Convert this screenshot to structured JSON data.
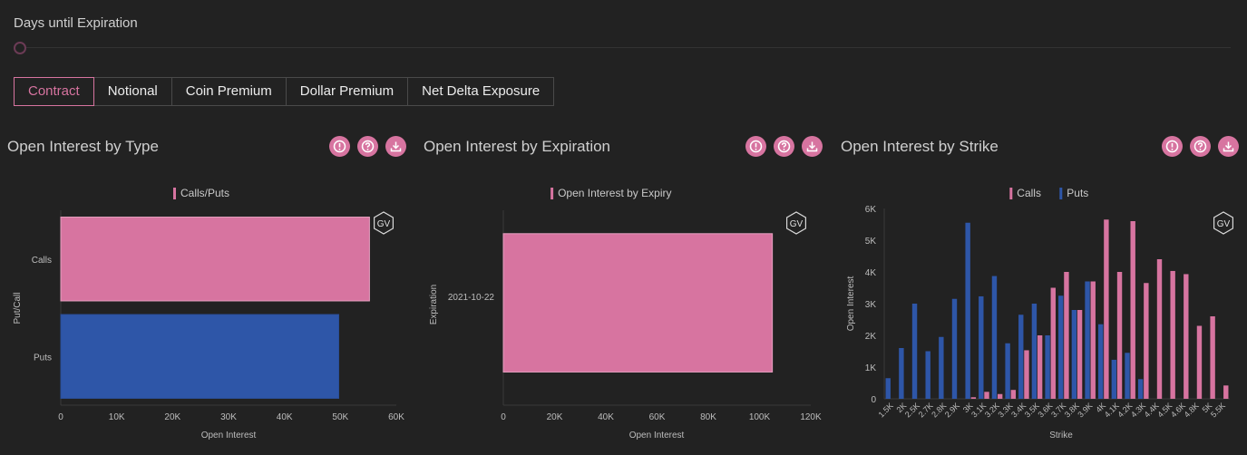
{
  "slider": {
    "label": "Days until Expiration"
  },
  "tabs": [
    "Contract",
    "Notional",
    "Coin Premium",
    "Dollar Premium",
    "Net Delta Exposure"
  ],
  "active_tab": "Contract",
  "colors": {
    "calls": "#d774a0",
    "puts": "#2e56a8",
    "accent": "#d774a0"
  },
  "panels": [
    {
      "title": "Open Interest by Type",
      "icons": [
        "info-icon",
        "help-icon",
        "download-icon"
      ]
    },
    {
      "title": "Open Interest by Expiration",
      "icons": [
        "info-icon",
        "help-icon",
        "download-icon"
      ]
    },
    {
      "title": "Open Interest by Strike",
      "icons": [
        "info-icon",
        "help-icon",
        "download-icon"
      ]
    }
  ],
  "chart_data": [
    {
      "type": "bar",
      "orientation": "horizontal",
      "legend": [
        "Calls/Puts"
      ],
      "categories": [
        "Calls",
        "Puts"
      ],
      "values": [
        55200,
        49700
      ],
      "xlabel": "Open Interest",
      "ylabel": "Put/Call",
      "xlim": [
        0,
        60000
      ],
      "xticks": [
        "0",
        "10K",
        "20K",
        "30K",
        "40K",
        "50K",
        "60K"
      ],
      "watermark": "GV"
    },
    {
      "type": "bar",
      "orientation": "horizontal",
      "legend": [
        "Open Interest by Expiry"
      ],
      "categories": [
        "2021-10-22"
      ],
      "values": [
        105000
      ],
      "xlabel": "Open Interest",
      "ylabel": "Expiration",
      "xlim": [
        0,
        120000
      ],
      "xticks": [
        "0",
        "20K",
        "40K",
        "60K",
        "80K",
        "100K",
        "120K"
      ],
      "watermark": "GV"
    },
    {
      "type": "bar",
      "orientation": "vertical",
      "legend": [
        "Calls",
        "Puts"
      ],
      "categories": [
        "1.5K",
        "2K",
        "2.5K",
        "2.7K",
        "2.8K",
        "2.9K",
        "3K",
        "3.1K",
        "3.2K",
        "3.3K",
        "3.4K",
        "3.5K",
        "3.6K",
        "3.7K",
        "3.8K",
        "3.9K",
        "4K",
        "4.1K",
        "4.2K",
        "4.3K",
        "4.4K",
        "4.5K",
        "4.6K",
        "4.8K",
        "5K",
        "5.5K"
      ],
      "series": [
        {
          "name": "Calls",
          "values": [
            0,
            0,
            0,
            0,
            0,
            0,
            50,
            220,
            150,
            280,
            1530,
            2000,
            3500,
            4000,
            2800,
            3700,
            5650,
            4000,
            5600,
            3650,
            4400,
            4030,
            3930,
            2300,
            2600,
            420
          ]
        },
        {
          "name": "Puts",
          "values": [
            650,
            1600,
            3000,
            1500,
            1950,
            3150,
            5550,
            3230,
            3870,
            1750,
            2650,
            3000,
            2000,
            3250,
            2800,
            3700,
            2350,
            1230,
            1450,
            620,
            0,
            0,
            0,
            0,
            0,
            0
          ]
        }
      ],
      "xlabel": "Strike",
      "ylabel": "Open Interest",
      "ylim": [
        0,
        6000
      ],
      "yticks": [
        "0",
        "1K",
        "2K",
        "3K",
        "4K",
        "5K",
        "6K"
      ],
      "watermark": "GV"
    }
  ]
}
